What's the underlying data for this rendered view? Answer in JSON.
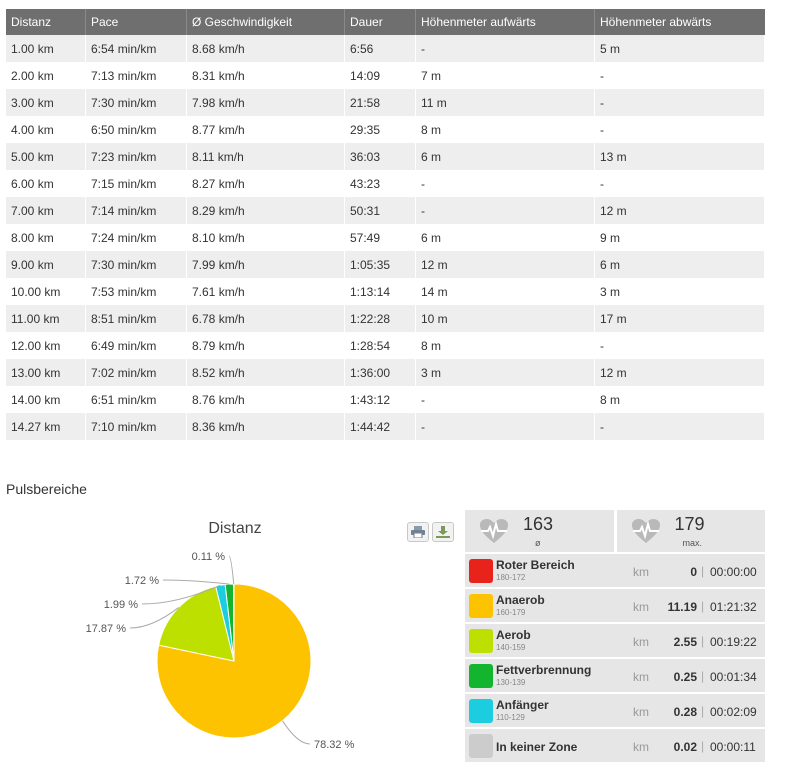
{
  "splits": {
    "headers": [
      "Distanz",
      "Pace",
      "Ø Geschwindigkeit",
      "Dauer",
      "Höhenmeter aufwärts",
      "Höhenmeter abwärts"
    ],
    "rows": [
      [
        "1.00 km",
        "6:54 min/km",
        "8.68 km/h",
        "6:56",
        "-",
        "5 m"
      ],
      [
        "2.00 km",
        "7:13 min/km",
        "8.31 km/h",
        "14:09",
        "7 m",
        "-"
      ],
      [
        "3.00 km",
        "7:30 min/km",
        "7.98 km/h",
        "21:58",
        "11 m",
        "-"
      ],
      [
        "4.00 km",
        "6:50 min/km",
        "8.77 km/h",
        "29:35",
        "8 m",
        "-"
      ],
      [
        "5.00 km",
        "7:23 min/km",
        "8.11 km/h",
        "36:03",
        "6 m",
        "13 m"
      ],
      [
        "6.00 km",
        "7:15 min/km",
        "8.27 km/h",
        "43:23",
        "-",
        "-"
      ],
      [
        "7.00 km",
        "7:14 min/km",
        "8.29 km/h",
        "50:31",
        "-",
        "12 m"
      ],
      [
        "8.00 km",
        "7:24 min/km",
        "8.10 km/h",
        "57:49",
        "6 m",
        "9 m"
      ],
      [
        "9.00 km",
        "7:30 min/km",
        "7.99 km/h",
        "1:05:35",
        "12 m",
        "6 m"
      ],
      [
        "10.00 km",
        "7:53 min/km",
        "7.61 km/h",
        "1:13:14",
        "14 m",
        "3 m"
      ],
      [
        "11.00 km",
        "8:51 min/km",
        "6.78 km/h",
        "1:22:28",
        "10 m",
        "17 m"
      ],
      [
        "12.00 km",
        "6:49 min/km",
        "8.79 km/h",
        "1:28:54",
        "8 m",
        "-"
      ],
      [
        "13.00 km",
        "7:02 min/km",
        "8.52 km/h",
        "1:36:00",
        "3 m",
        "12 m"
      ],
      [
        "14.00 km",
        "6:51 min/km",
        "8.76 km/h",
        "1:43:12",
        "-",
        "8 m"
      ],
      [
        "14.27 km",
        "7:10 min/km",
        "8.36 km/h",
        "1:44:42",
        "-",
        "-"
      ]
    ]
  },
  "section_title": "Pulsbereiche",
  "chart": {
    "title": "Distanz",
    "print_icon": "print-icon",
    "download_icon": "download-icon"
  },
  "chart_data": {
    "type": "pie",
    "title": "Distanz",
    "slices": [
      {
        "label": "78.32 %",
        "value": 78.32,
        "color": "#fdc300"
      },
      {
        "label": "17.87 %",
        "value": 17.87,
        "color": "#bde000"
      },
      {
        "label": "1.99 %",
        "value": 1.99,
        "color": "#1ccde0"
      },
      {
        "label": "1.72 %",
        "value": 1.72,
        "color": "#12b52d"
      },
      {
        "label": "0.11 %",
        "value": 0.11,
        "color": "#bbbbbb"
      }
    ]
  },
  "heart_stats": {
    "avg": {
      "value": "163",
      "label": "ø",
      "icon": "heart-pulse-icon"
    },
    "max": {
      "value": "179",
      "label": "max.",
      "icon": "heart-pulse-icon"
    }
  },
  "zones": [
    {
      "name": "Roter Bereich",
      "range": "180-172",
      "unit": "km",
      "km": "0",
      "time": "00:00:00",
      "color": "#e8231b"
    },
    {
      "name": "Anaerob",
      "range": "160-179",
      "unit": "km",
      "km": "11.19",
      "time": "01:21:32",
      "color": "#fdc300"
    },
    {
      "name": "Aerob",
      "range": "140-159",
      "unit": "km",
      "km": "2.55",
      "time": "00:19:22",
      "color": "#bde000"
    },
    {
      "name": "Fettverbrennung",
      "range": "130-139",
      "unit": "km",
      "km": "0.25",
      "time": "00:01:34",
      "color": "#12b52d"
    },
    {
      "name": "Anfänger",
      "range": "110-129",
      "unit": "km",
      "km": "0.28",
      "time": "00:02:09",
      "color": "#1ccde0"
    },
    {
      "name": "In keiner Zone",
      "range": "",
      "unit": "km",
      "km": "0.02",
      "time": "00:00:11",
      "color": "#cccccc"
    }
  ]
}
